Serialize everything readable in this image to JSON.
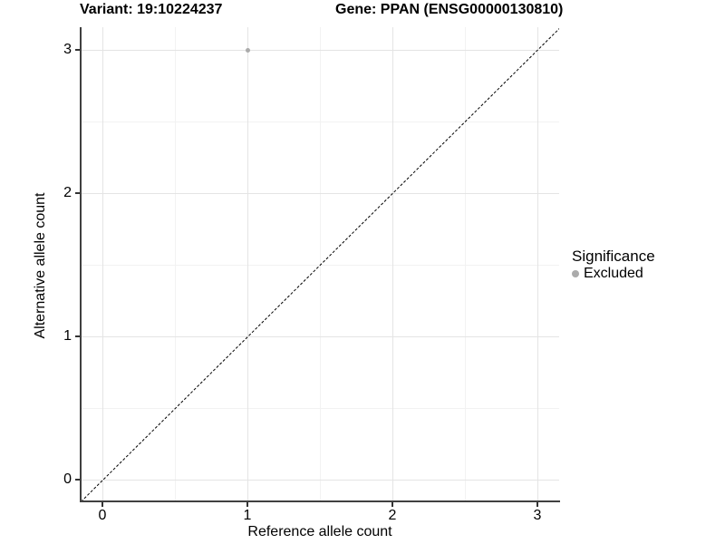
{
  "chart_data": {
    "type": "scatter",
    "title_left": "Variant: 19:10224237",
    "title_right": "Gene: PPAN (ENSG00000130810)",
    "xlabel": "Reference allele count",
    "ylabel": "Alternative allele count",
    "x_ticks": [
      "0",
      "1",
      "2",
      "3"
    ],
    "y_ticks": [
      "0",
      "1",
      "2",
      "3"
    ],
    "x_minor_gridlines": [
      0.5,
      1.5,
      2.5
    ],
    "y_minor_gridlines": [
      0.5,
      1.5,
      2.5
    ],
    "xlim": [
      -0.15,
      3.15
    ],
    "ylim": [
      -0.15,
      3.15
    ],
    "grid": "major and minor, light gray on white",
    "series": [
      {
        "name": "Excluded",
        "color": "#ababab",
        "points": [
          {
            "x": 1,
            "y": 3
          }
        ]
      }
    ],
    "reference_line": {
      "kind": "y = x diagonal",
      "style": "dashed",
      "color": "#000000"
    },
    "legend": {
      "title": "Significance",
      "position": "right",
      "entries": [
        {
          "label": "Excluded",
          "color": "#ababab",
          "marker": "circle"
        }
      ]
    },
    "colors": {
      "background": "#ffffff",
      "grid_major": "#e4e4e4",
      "grid_minor": "#f2f2f2",
      "axis": "#404040",
      "text": "#000000",
      "point": "#ababab"
    }
  }
}
